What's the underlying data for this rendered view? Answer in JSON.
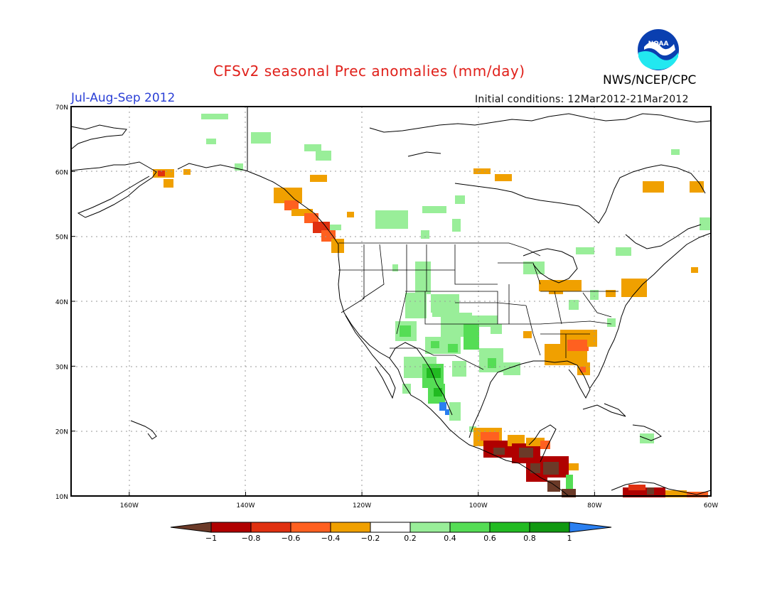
{
  "header": {
    "title": "CFSv2 seasonal Prec anomalies (mm/day)",
    "season": "Jul-Aug-Sep 2012",
    "initial_conditions": "Initial conditions: 12Mar2012-21Mar2012",
    "agency": "NWS/NCEP/CPC",
    "logo_text": "NOAA"
  },
  "map": {
    "lat_ticks": [
      "70N",
      "60N",
      "50N",
      "40N",
      "30N",
      "20N",
      "10N"
    ],
    "lon_ticks": [
      "160W",
      "140W",
      "120W",
      "100W",
      "80W",
      "60W"
    ],
    "lat_values": [
      70,
      60,
      50,
      40,
      30,
      20,
      10
    ],
    "lon_values": [
      -160,
      -140,
      -120,
      -100,
      -80,
      -60
    ],
    "extent": {
      "lon": [
        -170,
        -60
      ],
      "lat": [
        10,
        70
      ]
    },
    "grid": "dotted"
  },
  "legend": {
    "labels": [
      "-1",
      "-0.8",
      "-0.6",
      "-0.4",
      "-0.2",
      "0.2",
      "0.4",
      "0.6",
      "0.8",
      "1"
    ],
    "colors": [
      "#6b3a28",
      "#b00000",
      "#e03010",
      "#ff6020",
      "#f0a000",
      "#ffffff",
      "#99ee99",
      "#55dd55",
      "#22bb22",
      "#119911",
      "#2a7ff0"
    ]
  },
  "colors": {
    "title": "#e0201a",
    "season": "#2a3fd6",
    "coast": "#000000"
  }
}
